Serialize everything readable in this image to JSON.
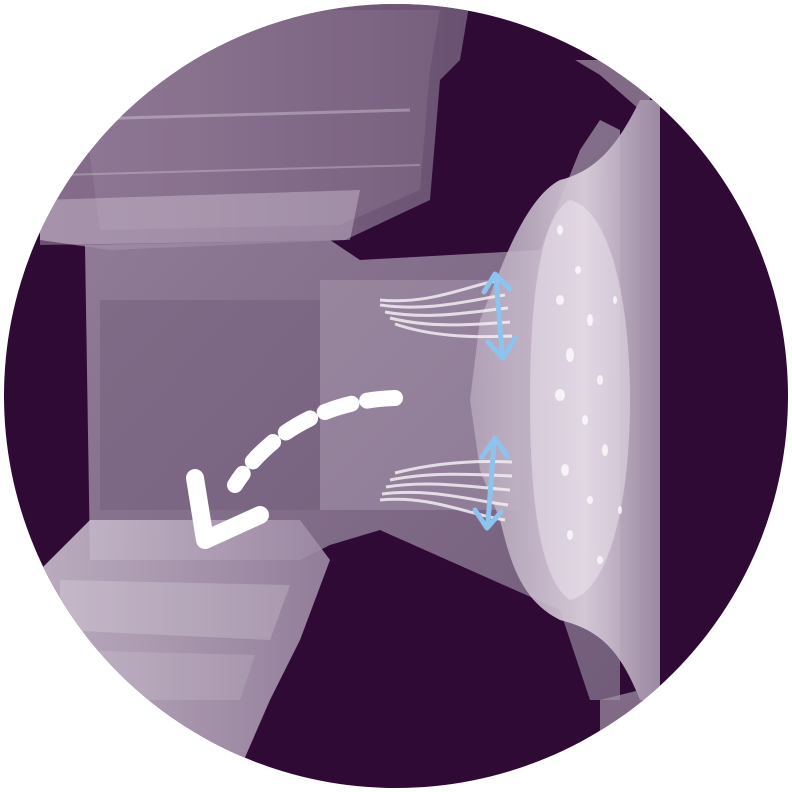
{
  "image": {
    "background_color": "#ffffff",
    "circle_color": "#2e0a35",
    "plastic_color": "#8f7b96",
    "highlight_color": "#e9e1ec",
    "arrow_color": "#ffffff",
    "flex_arrow_color": "#8cc4ee",
    "icons": {
      "curved_arrow": "dashed-curved-arrow-icon",
      "flex_arrow_top": "double-arrow-icon",
      "flex_arrow_bottom": "double-arrow-icon"
    }
  }
}
